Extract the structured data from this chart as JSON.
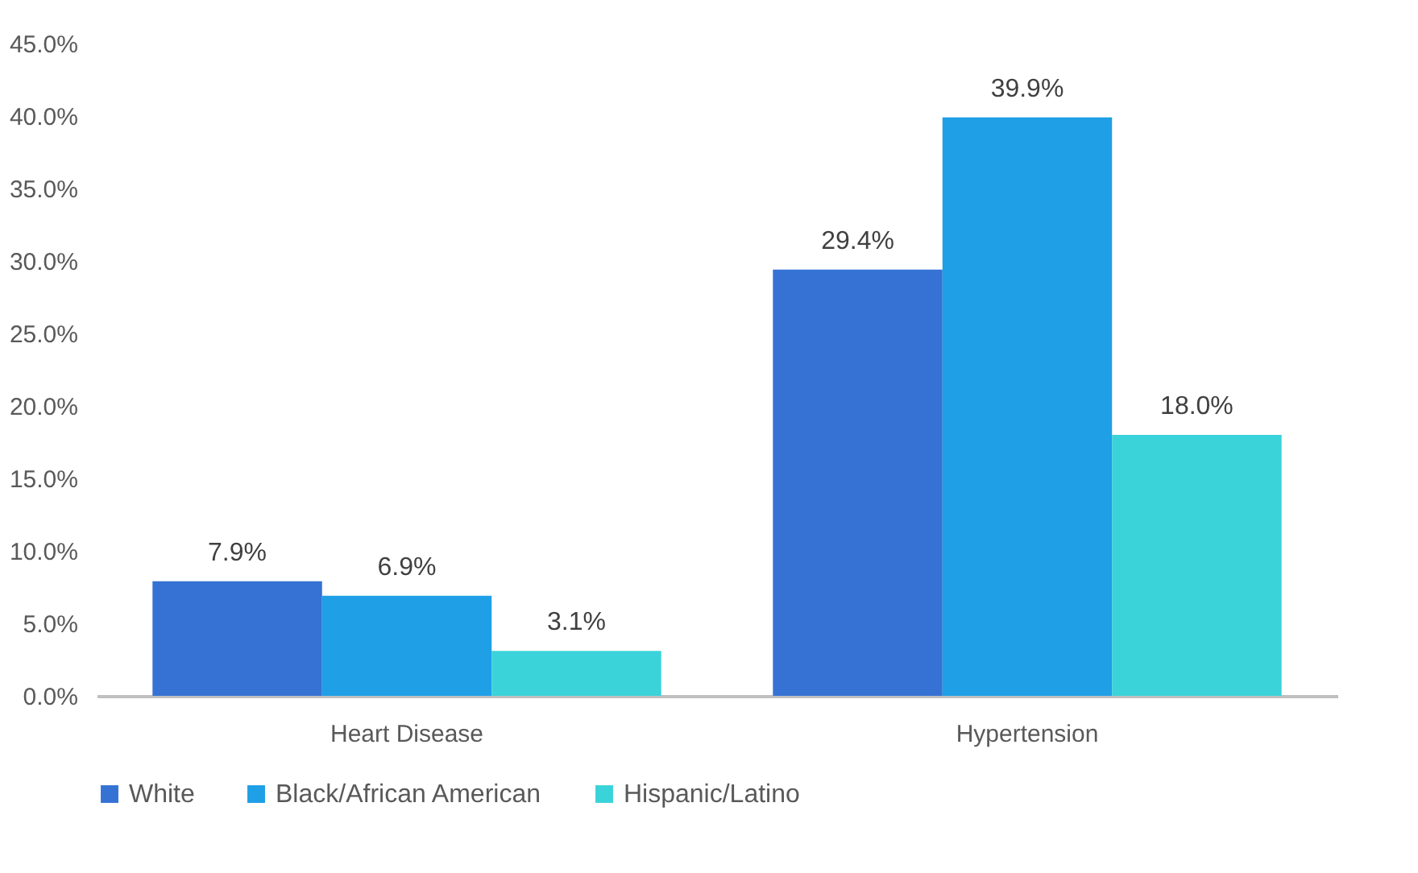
{
  "chart_data": {
    "type": "bar",
    "categories": [
      "Heart Disease",
      "Hypertension"
    ],
    "series": [
      {
        "name": "White",
        "color": "#3572d4",
        "values": [
          7.9,
          29.4
        ],
        "value_labels": [
          "7.9%",
          "29.4%"
        ]
      },
      {
        "name": "Black/African American",
        "color": "#1e9fe6",
        "values": [
          6.9,
          39.9
        ],
        "value_labels": [
          "6.9%",
          "39.9%"
        ]
      },
      {
        "name": "Hispanic/Latino",
        "color": "#3ad3da",
        "values": [
          3.1,
          18.0
        ],
        "value_labels": [
          "3.1%",
          "18.0%"
        ]
      }
    ],
    "ylim": [
      0,
      45
    ],
    "yticks": [
      {
        "value": 0,
        "label": "0.0%"
      },
      {
        "value": 5,
        "label": "5.0%"
      },
      {
        "value": 10,
        "label": "10.0%"
      },
      {
        "value": 15,
        "label": "15.0%"
      },
      {
        "value": 20,
        "label": "20.0%"
      },
      {
        "value": 25,
        "label": "25.0%"
      },
      {
        "value": 30,
        "label": "30.0%"
      },
      {
        "value": 35,
        "label": "35.0%"
      },
      {
        "value": 40,
        "label": "40.0%"
      },
      {
        "value": 45,
        "label": "45.0%"
      }
    ],
    "grid": false,
    "legend": "bottom"
  }
}
